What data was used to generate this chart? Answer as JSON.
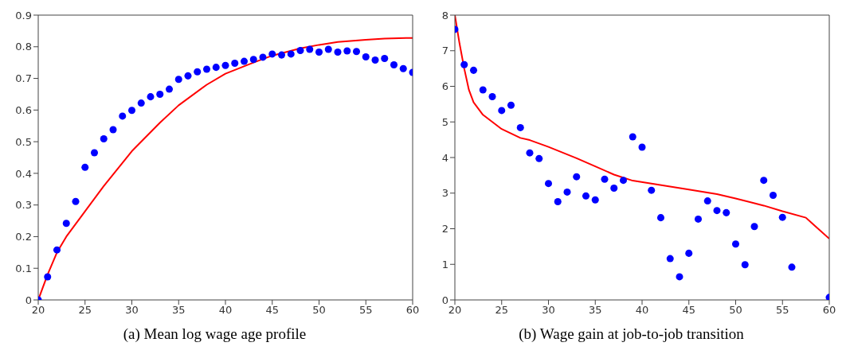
{
  "chart_data": [
    {
      "type": "scatter",
      "annotations": [
        "(a) Mean log wage age profile"
      ],
      "xlim": [
        20,
        60
      ],
      "xticks": [
        20,
        25,
        30,
        35,
        40,
        45,
        50,
        55,
        60
      ],
      "ylim": [
        0,
        0.9
      ],
      "yticks": [
        0,
        0.1,
        0.2,
        0.3,
        0.4,
        0.5,
        0.6,
        0.7,
        0.8,
        0.9
      ],
      "series": [
        {
          "marker": "circle",
          "color": "#0000ff",
          "x": [
            20,
            21,
            22,
            23,
            24,
            25,
            26,
            27,
            28,
            29,
            30,
            31,
            32,
            33,
            34,
            35,
            36,
            37,
            38,
            39,
            40,
            41,
            42,
            43,
            44,
            45,
            46,
            47,
            48,
            49,
            50,
            51,
            52,
            53,
            54,
            55,
            56,
            57,
            58,
            59,
            60
          ],
          "values": [
            0,
            0.073,
            0.158,
            0.242,
            0.311,
            0.419,
            0.465,
            0.509,
            0.538,
            0.581,
            0.599,
            0.622,
            0.642,
            0.65,
            0.666,
            0.697,
            0.708,
            0.721,
            0.729,
            0.735,
            0.741,
            0.748,
            0.754,
            0.76,
            0.767,
            0.777,
            0.774,
            0.777,
            0.788,
            0.792,
            0.783,
            0.792,
            0.783,
            0.787,
            0.785,
            0.768,
            0.758,
            0.763,
            0.743,
            0.731,
            0.719
          ]
        },
        {
          "type": "line",
          "color": "#ff0000",
          "x": [
            20,
            21,
            22,
            23,
            25,
            27,
            30,
            33,
            35,
            38,
            40,
            43,
            45,
            48,
            50,
            52,
            55,
            57,
            60
          ],
          "values": [
            0,
            0.08,
            0.15,
            0.2,
            0.28,
            0.36,
            0.47,
            0.56,
            0.615,
            0.68,
            0.715,
            0.75,
            0.772,
            0.795,
            0.806,
            0.815,
            0.822,
            0.826,
            0.828
          ]
        }
      ]
    },
    {
      "type": "scatter",
      "annotations": [
        "(b) Wage gain at job-to-job transition"
      ],
      "xlim": [
        20,
        60
      ],
      "xticks": [
        20,
        25,
        30,
        35,
        40,
        45,
        50,
        55,
        60
      ],
      "ylim": [
        0,
        8
      ],
      "yticks": [
        0,
        1,
        2,
        3,
        4,
        5,
        6,
        7,
        8
      ],
      "series": [
        {
          "marker": "circle",
          "color": "#0000ff",
          "x": [
            20,
            21,
            22,
            23,
            24,
            25,
            26,
            27,
            28,
            29,
            30,
            31,
            32,
            33,
            34,
            35,
            36,
            37,
            38,
            39,
            40,
            41,
            42,
            43,
            44,
            45,
            46,
            47,
            48,
            49,
            50,
            51,
            52,
            53,
            54,
            55,
            56,
            60
          ],
          "values": [
            7.6,
            6.61,
            6.45,
            5.9,
            5.71,
            5.32,
            5.47,
            4.84,
            4.13,
            3.97,
            3.27,
            2.76,
            3.03,
            3.46,
            2.92,
            2.81,
            3.39,
            3.14,
            3.36,
            4.58,
            4.29,
            3.08,
            2.31,
            1.16,
            0.65,
            1.31,
            2.27,
            2.78,
            2.51,
            2.45,
            1.57,
            0.99,
            2.06,
            3.36,
            2.94,
            2.32,
            0.92,
            0.07
          ]
        },
        {
          "type": "line",
          "color": "#ff0000",
          "x": [
            20,
            20.5,
            21,
            21.5,
            22,
            23,
            25,
            27,
            28,
            30,
            33,
            35,
            37,
            39,
            41,
            45,
            48,
            50,
            53,
            55,
            57.5,
            60
          ],
          "values": [
            8,
            7.2,
            6.5,
            5.9,
            5.55,
            5.2,
            4.8,
            4.55,
            4.49,
            4.3,
            3.98,
            3.75,
            3.52,
            3.35,
            3.27,
            3.1,
            2.97,
            2.85,
            2.65,
            2.49,
            2.31,
            1.72
          ]
        }
      ]
    }
  ]
}
